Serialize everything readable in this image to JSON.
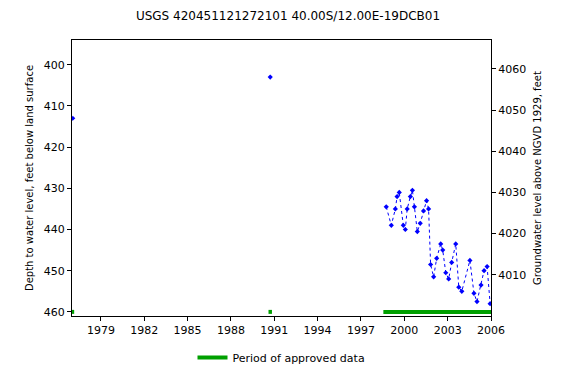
{
  "chart_data": {
    "type": "scatter",
    "title": "USGS 420451121272101 40.00S/12.00E-19DCB01",
    "y_label": "Depth to water level, feet below land surface",
    "y2_label": "Groundwater level above NGVD 1929, feet",
    "xlim": [
      1977,
      2006
    ],
    "xticks": [
      1979,
      1982,
      1985,
      1988,
      1991,
      1994,
      1997,
      2000,
      2003,
      2006
    ],
    "ylim": [
      461,
      394
    ],
    "yticks": [
      400,
      410,
      420,
      430,
      440,
      450,
      460
    ],
    "y2lim": [
      4000,
      4067
    ],
    "y2ticks": [
      4010,
      4020,
      4030,
      4040,
      4050,
      4060
    ],
    "grid": false,
    "legend": "bottom",
    "series": [
      {
        "color": "#0000ff",
        "marker": "diamond",
        "line_style": "none",
        "x": [
          1977.05,
          1990.72
        ],
        "values": [
          413,
          403
        ]
      },
      {
        "color": "#0000ff",
        "marker": "diamond",
        "line_style": "dot",
        "x": [
          1998.75,
          1999.1,
          1999.38,
          1999.5,
          1999.65,
          1999.93,
          2000.07,
          2000.2,
          2000.42,
          2000.56,
          2000.7,
          2000.9,
          2001.1,
          2001.33,
          2001.54,
          2001.68,
          2001.82,
          2002.03,
          2002.24,
          2002.52,
          2002.66,
          2002.87,
          2003.07,
          2003.28,
          2003.56,
          2003.77,
          2003.98,
          2004.54,
          2004.82,
          2005.03,
          2005.31,
          2005.52,
          2005.73,
          2005.94
        ],
        "values": [
          434.5,
          439,
          435,
          432,
          431,
          439,
          440,
          435,
          432,
          430.5,
          434.5,
          440.5,
          438.5,
          435.5,
          433,
          435,
          448.5,
          451.5,
          447,
          443.5,
          445,
          450.5,
          452,
          448,
          443.5,
          454,
          455,
          447.5,
          455.5,
          457.5,
          453.5,
          450,
          449,
          458
        ]
      },
      {
        "name": "Period of approved data",
        "color": "#00a000",
        "marker": "none",
        "line_style": "solid",
        "x": [
          1976.95,
          1977.15,
          null,
          1990.6,
          1990.84,
          null,
          1998.55,
          2006
        ],
        "values": [
          460,
          460,
          null,
          460,
          460,
          null,
          460,
          460
        ]
      }
    ]
  }
}
